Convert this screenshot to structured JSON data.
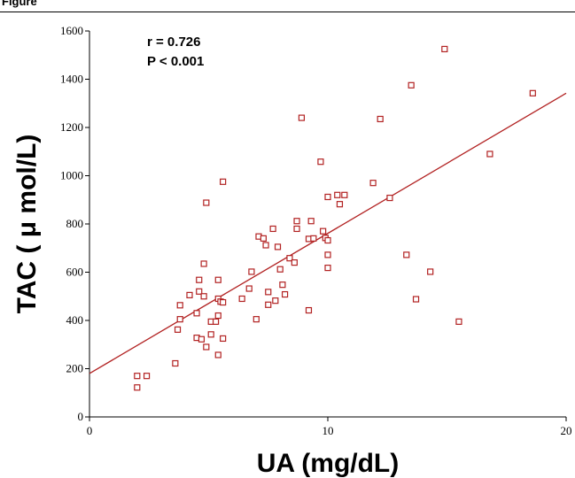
{
  "chart_data": {
    "type": "scatter",
    "header_label": "Figure",
    "xlabel": "UA (mg/dL)",
    "ylabel": "TAC ( μ mol/L)",
    "xlim": [
      0,
      20
    ],
    "ylim": [
      0,
      1600
    ],
    "x_ticks": [
      "0",
      "10",
      "20"
    ],
    "y_ticks": [
      "0",
      "200",
      "400",
      "600",
      "800",
      "1000",
      "1200",
      "1400",
      "1600"
    ],
    "annotations": {
      "r": "r = 0.726",
      "p": "P < 0.001"
    },
    "marker_color": "#b22222",
    "regression_line": {
      "x": [
        0,
        20
      ],
      "y": [
        180,
        1342
      ]
    },
    "points": [
      {
        "x": 2.0,
        "y": 122
      },
      {
        "x": 2.0,
        "y": 170
      },
      {
        "x": 2.4,
        "y": 170
      },
      {
        "x": 3.6,
        "y": 222
      },
      {
        "x": 3.7,
        "y": 362
      },
      {
        "x": 3.8,
        "y": 405
      },
      {
        "x": 3.8,
        "y": 463
      },
      {
        "x": 4.2,
        "y": 505
      },
      {
        "x": 4.5,
        "y": 430
      },
      {
        "x": 4.5,
        "y": 328
      },
      {
        "x": 4.6,
        "y": 568
      },
      {
        "x": 4.6,
        "y": 520
      },
      {
        "x": 4.7,
        "y": 322
      },
      {
        "x": 4.8,
        "y": 500
      },
      {
        "x": 4.8,
        "y": 635
      },
      {
        "x": 4.9,
        "y": 888
      },
      {
        "x": 4.9,
        "y": 290
      },
      {
        "x": 5.1,
        "y": 342
      },
      {
        "x": 5.1,
        "y": 395
      },
      {
        "x": 5.3,
        "y": 395
      },
      {
        "x": 5.4,
        "y": 257
      },
      {
        "x": 5.4,
        "y": 420
      },
      {
        "x": 5.4,
        "y": 490
      },
      {
        "x": 5.4,
        "y": 568
      },
      {
        "x": 5.5,
        "y": 478
      },
      {
        "x": 5.6,
        "y": 475
      },
      {
        "x": 5.6,
        "y": 325
      },
      {
        "x": 5.6,
        "y": 975
      },
      {
        "x": 6.4,
        "y": 490
      },
      {
        "x": 6.7,
        "y": 532
      },
      {
        "x": 6.8,
        "y": 602
      },
      {
        "x": 7.0,
        "y": 405
      },
      {
        "x": 7.1,
        "y": 748
      },
      {
        "x": 7.3,
        "y": 740
      },
      {
        "x": 7.4,
        "y": 712
      },
      {
        "x": 7.5,
        "y": 518
      },
      {
        "x": 7.5,
        "y": 465
      },
      {
        "x": 7.7,
        "y": 780
      },
      {
        "x": 7.8,
        "y": 482
      },
      {
        "x": 7.9,
        "y": 705
      },
      {
        "x": 8.0,
        "y": 612
      },
      {
        "x": 8.1,
        "y": 548
      },
      {
        "x": 8.2,
        "y": 508
      },
      {
        "x": 8.4,
        "y": 658
      },
      {
        "x": 8.6,
        "y": 640
      },
      {
        "x": 8.7,
        "y": 812
      },
      {
        "x": 8.7,
        "y": 780
      },
      {
        "x": 8.9,
        "y": 1240
      },
      {
        "x": 9.2,
        "y": 442
      },
      {
        "x": 9.2,
        "y": 738
      },
      {
        "x": 9.3,
        "y": 812
      },
      {
        "x": 9.4,
        "y": 740
      },
      {
        "x": 9.7,
        "y": 1058
      },
      {
        "x": 9.8,
        "y": 770
      },
      {
        "x": 9.9,
        "y": 742
      },
      {
        "x": 10.0,
        "y": 912
      },
      {
        "x": 10.0,
        "y": 732
      },
      {
        "x": 10.0,
        "y": 672
      },
      {
        "x": 10.0,
        "y": 618
      },
      {
        "x": 10.4,
        "y": 920
      },
      {
        "x": 10.5,
        "y": 882
      },
      {
        "x": 10.7,
        "y": 920
      },
      {
        "x": 11.9,
        "y": 970
      },
      {
        "x": 12.2,
        "y": 1235
      },
      {
        "x": 12.6,
        "y": 908
      },
      {
        "x": 13.3,
        "y": 672
      },
      {
        "x": 13.5,
        "y": 1375
      },
      {
        "x": 13.7,
        "y": 488
      },
      {
        "x": 14.3,
        "y": 602
      },
      {
        "x": 14.9,
        "y": 1525
      },
      {
        "x": 15.5,
        "y": 395
      },
      {
        "x": 16.8,
        "y": 1090
      },
      {
        "x": 18.6,
        "y": 1342
      }
    ]
  }
}
